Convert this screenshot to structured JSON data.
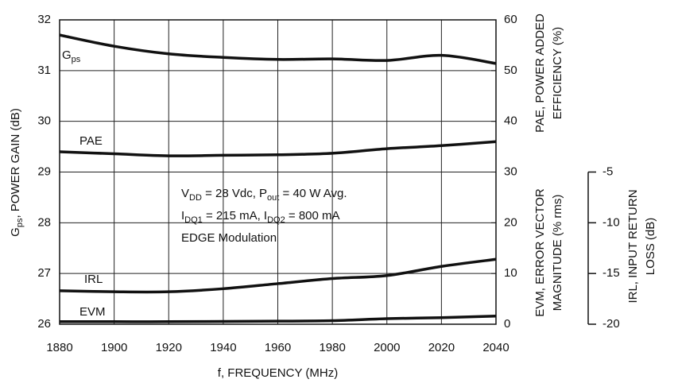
{
  "chart_data": {
    "type": "line",
    "x": [
      1880,
      1900,
      1920,
      1940,
      1960,
      1980,
      2000,
      2020,
      2040
    ],
    "xlim": [
      1880,
      2040
    ],
    "xticks": [
      1880,
      1900,
      1920,
      1940,
      1960,
      1980,
      2000,
      2020,
      2040
    ],
    "ylim": [
      26,
      32
    ],
    "yticks": [
      26,
      27,
      28,
      29,
      30,
      31,
      32
    ],
    "y2lim": [
      0,
      60
    ],
    "y2ticks": [
      0,
      10,
      20,
      30,
      40,
      50,
      60
    ],
    "y3lim": [
      -20,
      -5
    ],
    "y3ticks": [
      -5,
      -10,
      -15,
      -20
    ],
    "grid": true,
    "xlabel": "f, FREQUENCY (MHz)",
    "ylabel": [
      "G",
      "ps",
      ", POWER GAIN (dB)"
    ],
    "y2label_pae": [
      "PAE, POWER ADDED",
      "EFFICIENCY (%)"
    ],
    "y2label_evm": [
      "EVM, ERROR VECTOR",
      "MAGNITUDE (% rms)"
    ],
    "y3label": [
      "IRL, INPUT RETURN",
      "LOSS (dB)"
    ],
    "annotation": [
      [
        "V",
        "DD",
        " = 28 Vdc, P",
        "out",
        " = 40 W Avg."
      ],
      [
        "I",
        "DQ1",
        " = 215 mA, I",
        "DQ2",
        " = 800 mA"
      ],
      [
        "EDGE Modulation"
      ]
    ],
    "series": [
      {
        "name": [
          "G",
          "ps"
        ],
        "color": "#111111",
        "axis": "y",
        "values": [
          31.7,
          31.48,
          31.33,
          31.26,
          31.22,
          31.23,
          31.2,
          31.3,
          31.14
        ]
      },
      {
        "name": [
          "PAE"
        ],
        "color": "#111111",
        "axis": "y2",
        "values": [
          34,
          33.6,
          33.2,
          33.3,
          33.4,
          33.7,
          34.6,
          35.2,
          36
        ]
      },
      {
        "name": [
          "IRL"
        ],
        "color": "#111111",
        "axis": "y3",
        "values": [
          -16.7,
          -16.8,
          -16.8,
          -16.5,
          -16,
          -15.5,
          -15.2,
          -14.3,
          -13.6
        ]
      },
      {
        "name": [
          "EVM"
        ],
        "color": "#111111",
        "axis": "y2",
        "values": [
          0.5,
          0.5,
          0.5,
          0.55,
          0.6,
          0.7,
          1.1,
          1.3,
          1.6
        ]
      }
    ]
  }
}
